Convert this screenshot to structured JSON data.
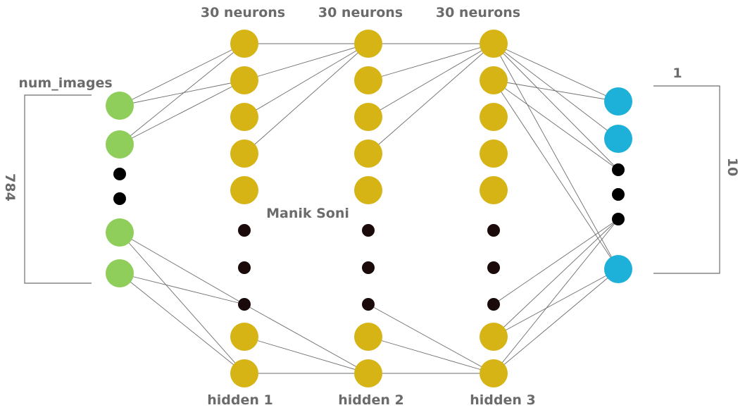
{
  "labels": {
    "input_top": "num_images",
    "input_count": "784",
    "output_top": "1",
    "output_count": "10",
    "watermark": "Manik Soni",
    "hidden_sizes": [
      "30 neurons",
      "30 neurons",
      "30 neurons"
    ],
    "hidden_names": [
      "hidden 1",
      "hidden 2",
      "hidden 3"
    ]
  },
  "colors": {
    "input": "#8fce5a",
    "hidden": "#d6b415",
    "output": "#1db0d8",
    "ellipsis_dot": "#000000",
    "hidden_dot": "#1a0a0a",
    "edge": "#6e6e6e",
    "text": "#6b6b6b"
  },
  "layers": [
    {
      "name": "input",
      "nodes": [
        "node",
        "node",
        "dot",
        "dot",
        "node",
        "node"
      ]
    },
    {
      "name": "hidden 1",
      "nodes": [
        "node",
        "node",
        "node",
        "node",
        "node",
        "dot",
        "dot",
        "dot",
        "node",
        "node"
      ]
    },
    {
      "name": "hidden 2",
      "nodes": [
        "node",
        "node",
        "node",
        "node",
        "node",
        "dot",
        "dot",
        "dot",
        "node",
        "node"
      ]
    },
    {
      "name": "hidden 3",
      "nodes": [
        "node",
        "node",
        "node",
        "node",
        "node",
        "dot",
        "dot",
        "dot",
        "node",
        "node"
      ]
    },
    {
      "name": "output",
      "nodes": [
        "node",
        "node",
        "dot",
        "dot",
        "dot",
        "node"
      ]
    }
  ],
  "connections": [
    {
      "from": [
        0,
        0
      ],
      "to": [
        1,
        0
      ]
    },
    {
      "from": [
        0,
        0
      ],
      "to": [
        1,
        1
      ]
    },
    {
      "from": [
        0,
        1
      ],
      "to": [
        1,
        0
      ]
    },
    {
      "from": [
        0,
        1
      ],
      "to": [
        1,
        1
      ]
    },
    {
      "from": [
        0,
        4
      ],
      "to": [
        1,
        7
      ]
    },
    {
      "from": [
        0,
        4
      ],
      "to": [
        1,
        9
      ]
    },
    {
      "from": [
        0,
        5
      ],
      "to": [
        1,
        7
      ]
    },
    {
      "from": [
        0,
        5
      ],
      "to": [
        1,
        9
      ]
    },
    {
      "from": [
        1,
        0
      ],
      "to": [
        2,
        0
      ]
    },
    {
      "from": [
        1,
        1
      ],
      "to": [
        2,
        0
      ]
    },
    {
      "from": [
        1,
        2
      ],
      "to": [
        2,
        0
      ]
    },
    {
      "from": [
        1,
        3
      ],
      "to": [
        2,
        0
      ]
    },
    {
      "from": [
        1,
        7
      ],
      "to": [
        2,
        9
      ]
    },
    {
      "from": [
        1,
        8
      ],
      "to": [
        2,
        9
      ]
    },
    {
      "from": [
        1,
        9
      ],
      "to": [
        2,
        9
      ]
    },
    {
      "from": [
        2,
        0
      ],
      "to": [
        3,
        0
      ]
    },
    {
      "from": [
        2,
        1
      ],
      "to": [
        3,
        0
      ]
    },
    {
      "from": [
        2,
        2
      ],
      "to": [
        3,
        0
      ]
    },
    {
      "from": [
        2,
        3
      ],
      "to": [
        3,
        0
      ]
    },
    {
      "from": [
        2,
        7
      ],
      "to": [
        3,
        9
      ]
    },
    {
      "from": [
        2,
        8
      ],
      "to": [
        3,
        9
      ]
    },
    {
      "from": [
        2,
        9
      ],
      "to": [
        3,
        9
      ]
    },
    {
      "from": [
        3,
        0
      ],
      "to": [
        4,
        0
      ]
    },
    {
      "from": [
        3,
        0
      ],
      "to": [
        4,
        1
      ]
    },
    {
      "from": [
        3,
        0
      ],
      "to": [
        4,
        2
      ]
    },
    {
      "from": [
        3,
        0
      ],
      "to": [
        4,
        5
      ]
    },
    {
      "from": [
        3,
        1
      ],
      "to": [
        4,
        0
      ]
    },
    {
      "from": [
        3,
        1
      ],
      "to": [
        4,
        2
      ]
    },
    {
      "from": [
        3,
        1
      ],
      "to": [
        4,
        5
      ]
    },
    {
      "from": [
        3,
        7
      ],
      "to": [
        4,
        4
      ]
    },
    {
      "from": [
        3,
        8
      ],
      "to": [
        4,
        4
      ]
    },
    {
      "from": [
        3,
        8
      ],
      "to": [
        4,
        5
      ]
    },
    {
      "from": [
        3,
        9
      ],
      "to": [
        4,
        4
      ]
    },
    {
      "from": [
        3,
        9
      ],
      "to": [
        4,
        5
      ]
    }
  ]
}
